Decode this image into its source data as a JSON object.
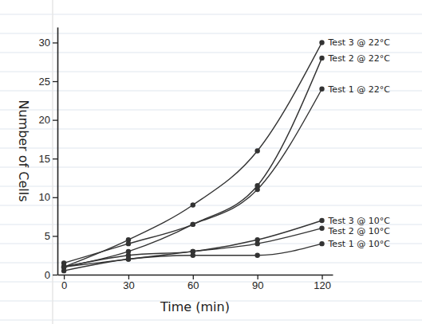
{
  "chart_data": {
    "type": "line",
    "x_label": "Time (min)",
    "y_label": "Number of Cells",
    "x": [
      0,
      30,
      60,
      90,
      120
    ],
    "xlim": [
      -3,
      125
    ],
    "xticks": [
      0,
      30,
      60,
      90,
      120
    ],
    "ylim": [
      0,
      32
    ],
    "yticks": [
      0,
      5,
      10,
      15,
      20,
      25,
      30
    ],
    "grid": false,
    "marker": "circle",
    "series": [
      {
        "name": "Test 3 @ 22°C",
        "color": "#333333",
        "values": [
          1,
          4.5,
          9,
          16,
          30
        ]
      },
      {
        "name": "Test 2 @ 22°C",
        "color": "#333333",
        "values": [
          1,
          3,
          6.5,
          11.5,
          28
        ]
      },
      {
        "name": "Test 1 @ 22°C",
        "color": "#333333",
        "values": [
          1.5,
          4,
          6.5,
          11,
          24
        ]
      },
      {
        "name": "Test 3 @ 10°C",
        "color": "#333333",
        "values": [
          1,
          2.5,
          3,
          4.5,
          7
        ]
      },
      {
        "name": "Test 2 @ 10°C",
        "color": "#333333",
        "values": [
          1,
          2,
          3,
          4,
          6
        ]
      },
      {
        "name": "Test 1 @ 10°C",
        "color": "#333333",
        "values": [
          0.5,
          2,
          2.5,
          2.5,
          4
        ]
      }
    ]
  }
}
